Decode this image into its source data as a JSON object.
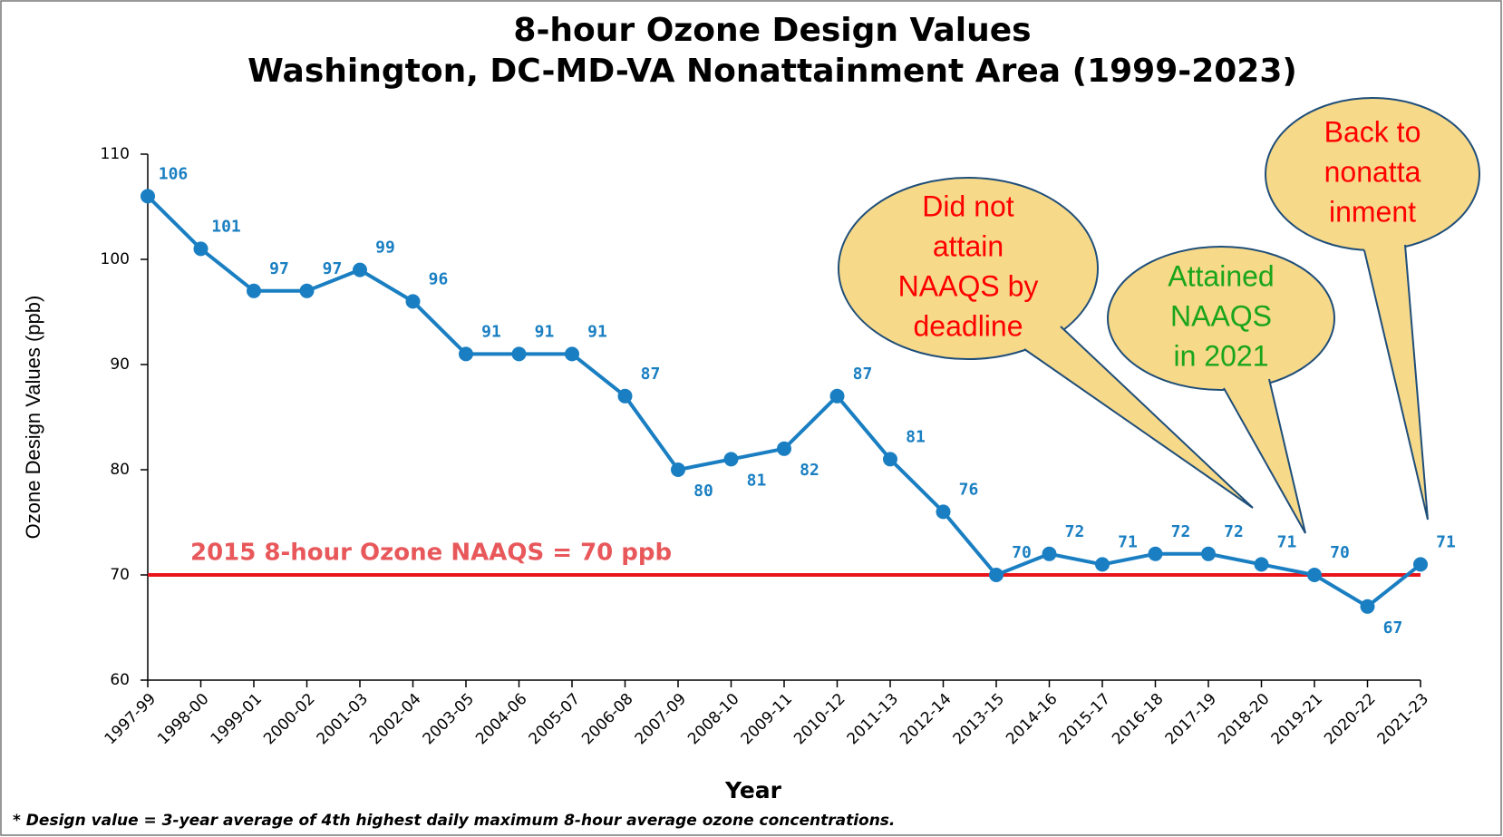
{
  "chart_data": {
    "type": "line",
    "title": [
      "8-hour Ozone Design Values",
      "Washington, DC-MD-VA Nonattainment Area (1999-2023)"
    ],
    "y_label": "Ozone Design Values (ppb)",
    "x_label": "Year",
    "footnote": "* Design value = 3-year average of 4th highest daily maximum 8-hour average ozone concentrations.",
    "categories": [
      "1997-99",
      "1998-00",
      "1999-01",
      "2000-02",
      "2001-03",
      "2002-04",
      "2003-05",
      "2004-06",
      "2005-07",
      "2006-08",
      "2007-09",
      "2008-10",
      "2009-11",
      "2010-12",
      "2011-13",
      "2012-14",
      "2013-15",
      "2014-16",
      "2015-17",
      "2016-18",
      "2017-19",
      "2018-20",
      "2019-21",
      "2020-22",
      "2021-23"
    ],
    "series": [
      {
        "name": "Ozone Design Values",
        "color": "#1a7fc2",
        "values": [
          106,
          101,
          97,
          97,
          99,
          96,
          91,
          91,
          91,
          87,
          80,
          81,
          82,
          87,
          81,
          76,
          70,
          72,
          71,
          72,
          72,
          71,
          70,
          67,
          71
        ]
      }
    ],
    "ylim": [
      60,
      110
    ],
    "yticks": [
      60,
      70,
      80,
      90,
      100,
      110
    ],
    "reference_line": {
      "value": 70,
      "label": "2015 8-hour Ozone NAAQS = 70 ppb",
      "color": "#e8161b",
      "label_color": "#e8585b"
    },
    "annotations": [
      {
        "lines": [
          "Did not",
          "attain",
          "NAAQS by",
          "deadline"
        ],
        "color": "#ff0000"
      },
      {
        "lines": [
          "Attained",
          "NAAQS",
          "in 2021"
        ],
        "color": "#1aa51a"
      },
      {
        "lines": [
          "Back to",
          "nonatta",
          "inment"
        ],
        "color": "#ff0000"
      }
    ]
  }
}
